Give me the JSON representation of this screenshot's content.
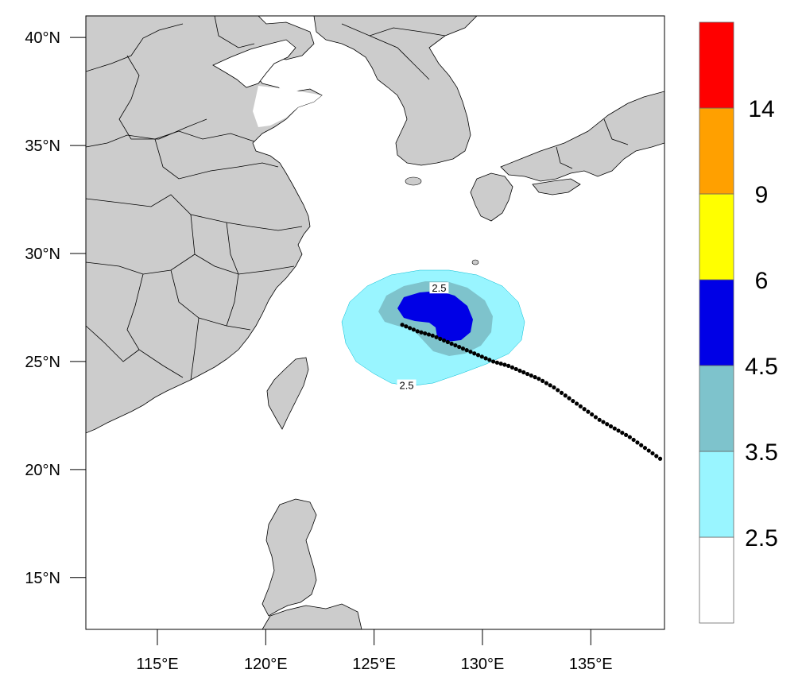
{
  "map": {
    "lon_range": [
      111.7,
      138.4
    ],
    "lat_range": [
      12.6,
      41.0
    ],
    "x_ticks": [
      {
        "lon": 115,
        "label": "115°E"
      },
      {
        "lon": 120,
        "label": "120°E"
      },
      {
        "lon": 125,
        "label": "125°E"
      },
      {
        "lon": 130,
        "label": "130°E"
      },
      {
        "lon": 135,
        "label": "135°E"
      }
    ],
    "y_ticks": [
      {
        "lat": 40,
        "label": "40°N"
      },
      {
        "lat": 35,
        "label": "35°N"
      },
      {
        "lat": 30,
        "label": "30°N"
      },
      {
        "lat": 25,
        "label": "25°N"
      },
      {
        "lat": 20,
        "label": "20°N"
      },
      {
        "lat": 15,
        "label": "15°N"
      }
    ],
    "contour_labels": [
      {
        "lon": 128.0,
        "lat": 28.3,
        "text": "2.5"
      },
      {
        "lon": 126.5,
        "lat": 23.8,
        "text": "2.5"
      }
    ],
    "colors": {
      "land": "#cccccc",
      "ocean": "#ffffff",
      "outline": "#000000"
    }
  },
  "colorbar": {
    "labels": [
      "2.5",
      "3.5",
      "4.5",
      "6",
      "9",
      "14"
    ],
    "colors": [
      "#ffffff",
      "#99f5ff",
      "#7ec3cc",
      "#0000e6",
      "#ffff00",
      "#ffa000",
      "#ff0000"
    ]
  },
  "track": [
    [
      126.3,
      26.7
    ],
    [
      127.0,
      26.4
    ],
    [
      127.7,
      26.2
    ],
    [
      128.4,
      25.9
    ],
    [
      129.1,
      25.6
    ],
    [
      129.8,
      25.3
    ],
    [
      130.5,
      25.0
    ],
    [
      131.2,
      24.8
    ],
    [
      131.9,
      24.5
    ],
    [
      132.6,
      24.2
    ],
    [
      133.3,
      23.8
    ],
    [
      134.0,
      23.3
    ],
    [
      134.7,
      22.8
    ],
    [
      135.4,
      22.3
    ],
    [
      136.1,
      21.9
    ],
    [
      136.8,
      21.5
    ],
    [
      137.5,
      21.0
    ],
    [
      138.2,
      20.5
    ]
  ]
}
